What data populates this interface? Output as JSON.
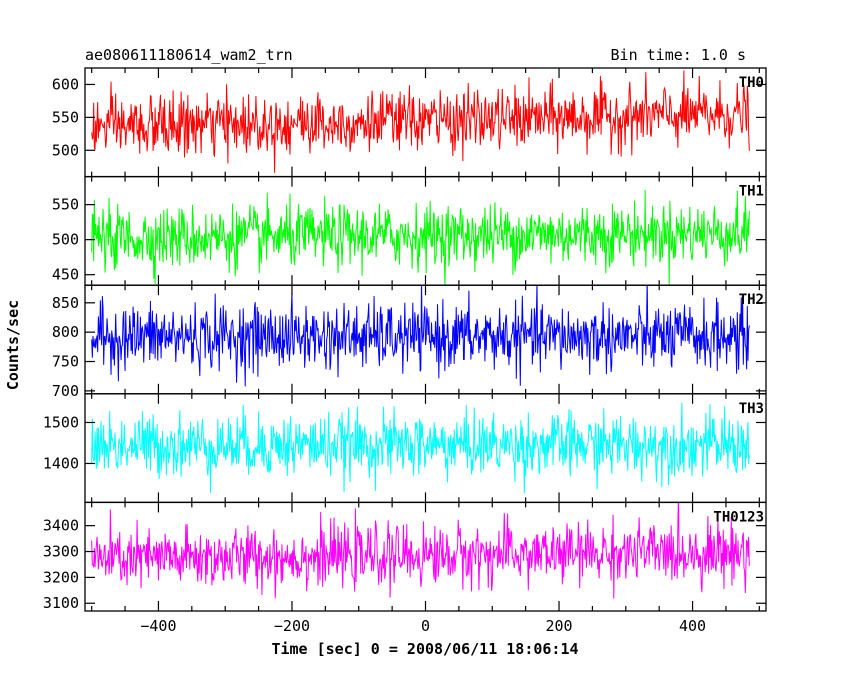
{
  "header": {
    "title": "ae080611180614_wam2_trn",
    "bin_time": "Bin time: 1.0 s"
  },
  "chart_data": {
    "type": "line",
    "title": "ae080611180614_wam2_trn",
    "subtitle": "Bin time: 1.0 s",
    "xlabel": "Time [sec] 0 = 2008/06/11 18:06:14",
    "ylabel": "Counts/sec",
    "xlim": [
      -510,
      510
    ],
    "x_ticks": [
      -400,
      -200,
      0,
      200,
      400
    ],
    "x_tick_labels": [
      "−400",
      "−200",
      "0",
      "200",
      "400"
    ],
    "x_data_range": [
      -500,
      485
    ],
    "grid": false,
    "panels": [
      {
        "name": "TH0",
        "color": "#ff0000",
        "ylim": [
          460,
          625
        ],
        "y_ticks": [
          500,
          550,
          600
        ],
        "y_tick_labels": [
          "500",
          "550",
          "600"
        ],
        "mean_start": 535,
        "mean_end": 555,
        "noise_sd": 23
      },
      {
        "name": "TH1",
        "color": "#00ff00",
        "ylim": [
          435,
          590
        ],
        "y_ticks": [
          450,
          500,
          550
        ],
        "y_tick_labels": [
          "450",
          "500",
          "550"
        ],
        "mean_start": 502,
        "mean_end": 510,
        "noise_sd": 22
      },
      {
        "name": "TH2",
        "color": "#0000ff",
        "ylim": [
          695,
          880
        ],
        "y_ticks": [
          700,
          750,
          800,
          850
        ],
        "y_tick_labels": [
          "700",
          "750",
          "800",
          "850"
        ],
        "mean_start": 792,
        "mean_end": 792,
        "noise_sd": 28
      },
      {
        "name": "TH3",
        "color": "#00ffff",
        "ylim": [
          1305,
          1570
        ],
        "y_ticks": [
          1400,
          1500
        ],
        "y_tick_labels": [
          "1400",
          "1500"
        ],
        "mean_start": 1445,
        "mean_end": 1445,
        "noise_sd": 38
      },
      {
        "name": "TH0123",
        "color": "#ff00ff",
        "ylim": [
          3070,
          3490
        ],
        "y_ticks": [
          3100,
          3200,
          3300,
          3400
        ],
        "y_tick_labels": [
          "3100",
          "3200",
          "3300",
          "3400"
        ],
        "mean_start": 3270,
        "mean_end": 3300,
        "noise_sd": 58
      }
    ]
  }
}
